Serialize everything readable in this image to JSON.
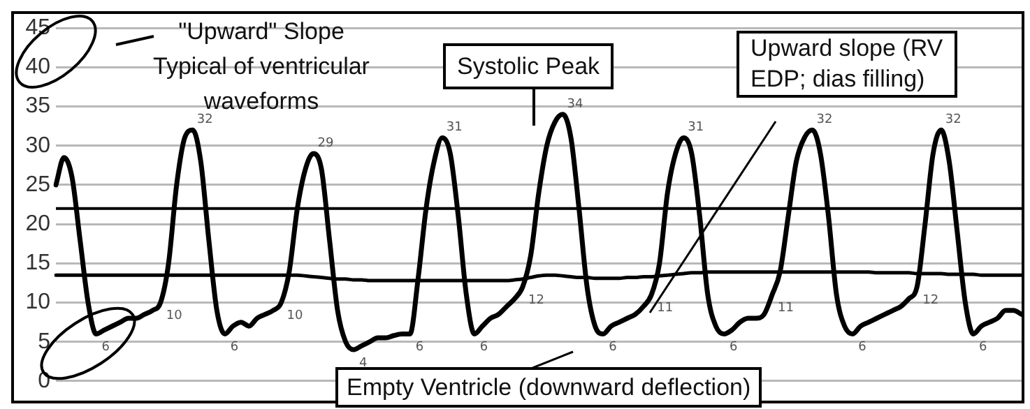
{
  "chart_data": {
    "type": "line",
    "categories": [
      null,
      null,
      null,
      null,
      null,
      null,
      null,
      null,
      null,
      null,
      null,
      null,
      null,
      null,
      null,
      null,
      null,
      null,
      null,
      null,
      null,
      null,
      null,
      null,
      null,
      null,
      null,
      null,
      null,
      null,
      null,
      null,
      null,
      null,
      null,
      null,
      null,
      null,
      null,
      null,
      null,
      null,
      null,
      null,
      null,
      null,
      null,
      null,
      null,
      null,
      null,
      null,
      null,
      null,
      null,
      null,
      null,
      null,
      null,
      null,
      null,
      null,
      null,
      null,
      null,
      null,
      null,
      null,
      null,
      null,
      null,
      null,
      null,
      null,
      null,
      null,
      null,
      null,
      null,
      null,
      null,
      null,
      null,
      null,
      null,
      null,
      null,
      null,
      null,
      null,
      null,
      null,
      null,
      null,
      null,
      null,
      null,
      null,
      null,
      null,
      null,
      null,
      null,
      null,
      null,
      null,
      null,
      null,
      null,
      null,
      null,
      null,
      null,
      null,
      null,
      null,
      null,
      null,
      null,
      null,
      null
    ],
    "series": [
      {
        "color": "#000000",
        "values": [
          25,
          28.5,
          26,
          18,
          10,
          6,
          6.5,
          7,
          7.5,
          8,
          8,
          8.5,
          9,
          10,
          15,
          25,
          31,
          32,
          28,
          18,
          9,
          6,
          7,
          7.5,
          7,
          8,
          8.5,
          9,
          10,
          14,
          22,
          27,
          29,
          27,
          18,
          9,
          5,
          4,
          4.5,
          5,
          5.5,
          5.5,
          5.8,
          6,
          6,
          13,
          22,
          28,
          31,
          29,
          21,
          11,
          6,
          7,
          8,
          8.5,
          9.5,
          10.5,
          12,
          16,
          24,
          30,
          33,
          34,
          31,
          22,
          12,
          7,
          6,
          7,
          7.5,
          8,
          8.5,
          9.5,
          11,
          15,
          24,
          29,
          31,
          29,
          21,
          11,
          7,
          6,
          6.5,
          7.5,
          8,
          8,
          8.5,
          11,
          14,
          21,
          28,
          31,
          32,
          29,
          21,
          11,
          7,
          6,
          7,
          7.5,
          8,
          8.5,
          9,
          9.5,
          10.5,
          12,
          20,
          29,
          32,
          28,
          19,
          10,
          6,
          7,
          7.5,
          8,
          9,
          9,
          8.5
        ],
        "value_labels": [
          null,
          null,
          null,
          null,
          null,
          "6",
          null,
          null,
          null,
          null,
          null,
          null,
          null,
          "10",
          null,
          null,
          null,
          "32",
          null,
          null,
          null,
          "6",
          null,
          null,
          null,
          null,
          null,
          null,
          "10",
          null,
          null,
          null,
          "29",
          null,
          null,
          null,
          null,
          "4",
          null,
          null,
          null,
          null,
          null,
          null,
          "6",
          null,
          null,
          null,
          "31",
          null,
          null,
          null,
          "6",
          null,
          null,
          null,
          null,
          null,
          "12",
          null,
          null,
          null,
          null,
          "34",
          null,
          null,
          null,
          null,
          "6",
          null,
          null,
          null,
          null,
          null,
          "11",
          null,
          null,
          null,
          "31",
          null,
          null,
          null,
          null,
          "6",
          null,
          null,
          null,
          null,
          null,
          "11",
          null,
          null,
          null,
          null,
          "32",
          null,
          null,
          null,
          null,
          "6",
          null,
          null,
          null,
          null,
          null,
          null,
          null,
          "12",
          null,
          null,
          "32",
          null,
          null,
          null,
          "6",
          null,
          null,
          null,
          null,
          null,
          null
        ]
      },
      {
        "color": "#000000",
        "values": [
          13.5,
          13.5,
          13.5,
          13.5,
          13.5,
          13.5,
          13.5,
          13.5,
          13.5,
          13.5,
          13.5,
          13.5,
          13.5,
          13.5,
          13.5,
          13.5,
          13.5,
          13.5,
          13.5,
          13.5,
          13.5,
          13.5,
          13.5,
          13.5,
          13.5,
          13.5,
          13.5,
          13.5,
          13.5,
          13.5,
          13.5,
          13.4,
          13.3,
          13.2,
          13.1,
          13,
          13,
          12.9,
          12.9,
          12.8,
          12.8,
          12.8,
          12.8,
          12.8,
          12.8,
          12.8,
          12.8,
          12.8,
          12.8,
          12.8,
          12.8,
          12.8,
          12.8,
          12.8,
          12.8,
          12.8,
          12.8,
          12.9,
          13,
          13.2,
          13.4,
          13.5,
          13.5,
          13.4,
          13.3,
          13.2,
          13.2,
          13.1,
          13.1,
          13.1,
          13.1,
          13.2,
          13.2,
          13.3,
          13.3,
          13.4,
          13.5,
          13.6,
          13.7,
          13.8,
          13.8,
          13.9,
          13.9,
          13.9,
          13.9,
          13.9,
          13.9,
          13.9,
          13.9,
          13.9,
          13.9,
          13.9,
          13.9,
          13.9,
          13.9,
          13.9,
          13.9,
          13.9,
          13.9,
          13.9,
          13.9,
          13.9,
          13.8,
          13.8,
          13.8,
          13.8,
          13.8,
          13.7,
          13.7,
          13.7,
          13.7,
          13.6,
          13.6,
          13.6,
          13.6,
          13.5,
          13.5,
          13.5,
          13.5,
          13.5,
          13.5
        ]
      }
    ],
    "ylim": [
      -2.5,
      46.8
    ],
    "yticks": [
      0,
      5,
      10,
      15,
      20,
      25,
      30,
      35,
      40,
      45
    ],
    "grid": "y",
    "tick_labels": "y",
    "legend": false,
    "marker": "none",
    "line_style": "solid",
    "ref_lines": [
      {
        "axis": "y",
        "value": 22,
        "color": "#000000"
      }
    ],
    "annotations": [
      "\"Upward\" Slope\nTypical of ventricular\nwaveforms",
      "Systolic Peak",
      "Upward slope (RV\nEDP; dias filling)",
      "Empty Ventricle (downward deflection)"
    ]
  }
}
